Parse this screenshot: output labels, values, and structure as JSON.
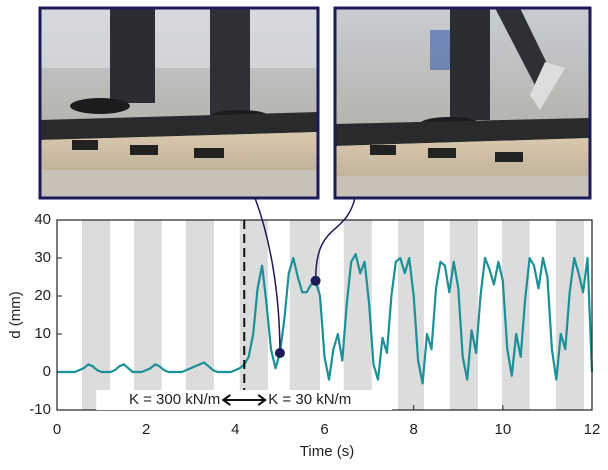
{
  "chart_data": {
    "type": "line",
    "xlabel": "Time (s)",
    "ylabel": "d (mm)",
    "xlim": [
      0,
      12
    ],
    "ylim": [
      -10,
      40
    ],
    "xticks": [
      0,
      2,
      4,
      6,
      8,
      10,
      12
    ],
    "yticks": [
      -10,
      0,
      10,
      20,
      30,
      40
    ],
    "shaded_intervals": [
      [
        0.56,
        1.19
      ],
      [
        1.73,
        2.35
      ],
      [
        2.89,
        3.52
      ],
      [
        4.1,
        4.73
      ],
      [
        5.22,
        5.9
      ],
      [
        6.43,
        7.06
      ],
      [
        7.65,
        8.23
      ],
      [
        8.81,
        9.44
      ],
      [
        9.98,
        10.6
      ],
      [
        11.19,
        11.82
      ]
    ],
    "shade_color": "#dcdcdc",
    "switch_x": 4.2,
    "annotations": [
      "K = 300 kN/m",
      "K = 30 kN/m"
    ],
    "highlighted_points": [
      50,
      58
    ],
    "x": [
      0,
      0.1,
      0.2,
      0.3,
      0.4,
      0.5,
      0.6,
      0.7,
      0.8,
      0.9,
      1,
      1.1,
      1.2,
      1.3,
      1.4,
      1.5,
      1.6,
      1.7,
      1.8,
      1.9,
      2,
      2.1,
      2.2,
      2.3,
      2.4,
      2.5,
      2.6,
      2.7,
      2.8,
      2.9,
      3,
      3.1,
      3.2,
      3.3,
      3.4,
      3.5,
      3.6,
      3.7,
      3.8,
      3.9,
      4,
      4.1,
      4.2,
      4.3,
      4.4,
      4.5,
      4.6,
      4.7,
      4.8,
      4.9,
      5,
      5.1,
      5.2,
      5.3,
      5.4,
      5.5,
      5.6,
      5.7,
      5.8,
      5.9,
      6,
      6.1,
      6.2,
      6.3,
      6.4,
      6.5,
      6.6,
      6.7,
      6.8,
      6.9,
      7,
      7.1,
      7.2,
      7.3,
      7.4,
      7.5,
      7.6,
      7.7,
      7.8,
      7.9,
      8,
      8.1,
      8.2,
      8.3,
      8.4,
      8.5,
      8.6,
      8.7,
      8.8,
      8.9,
      9,
      9.1,
      9.2,
      9.3,
      9.4,
      9.5,
      9.6,
      9.7,
      9.8,
      9.9,
      10,
      10.1,
      10.2,
      10.3,
      10.4,
      10.5,
      10.6,
      10.7,
      10.8,
      10.9,
      11,
      11.1,
      11.2,
      11.3,
      11.4,
      11.5,
      11.6,
      11.7,
      11.8,
      11.9,
      12
    ],
    "series": [
      {
        "name": "d",
        "color": "#1b9098",
        "values": [
          0,
          0,
          0,
          0,
          0,
          0.5,
          1,
          2,
          1.5,
          0.5,
          0,
          0,
          0,
          0.5,
          1.5,
          2,
          1,
          0,
          0,
          0,
          0.5,
          1,
          2,
          1.5,
          0.5,
          0,
          0,
          0,
          0,
          0.5,
          1,
          1.5,
          2,
          2.5,
          1.5,
          0.5,
          0,
          0,
          0,
          0,
          0.5,
          1,
          2,
          4,
          10,
          22,
          28,
          18,
          6,
          1,
          5,
          14,
          26,
          30,
          25,
          21,
          21,
          23,
          24,
          20,
          4,
          -2,
          6,
          10,
          3,
          18,
          29,
          31,
          26,
          29,
          18,
          2,
          -2,
          9,
          5,
          20,
          29,
          30,
          26,
          30,
          20,
          3,
          -3,
          10,
          6,
          22,
          29,
          28,
          21,
          29,
          22,
          4,
          -2,
          11,
          5,
          20,
          30,
          27,
          23,
          29,
          24,
          6,
          -1,
          10,
          4,
          19,
          30,
          28,
          22,
          30,
          25,
          6,
          -2,
          10,
          6,
          21,
          30,
          26,
          21,
          30,
          0
        ]
      }
    ]
  }
}
